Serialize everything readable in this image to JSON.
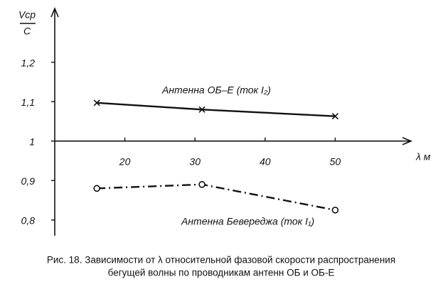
{
  "chart_data": {
    "type": "line",
    "ylabel": {
      "numerator": "Vср",
      "denominator": "C"
    },
    "xlabel": "λ м",
    "xlim": [
      10,
      60
    ],
    "xticks": [
      20,
      30,
      40,
      50
    ],
    "ylim": [
      0.76,
      1.32
    ],
    "yticks": [
      {
        "value": 0.8,
        "label": "0,8"
      },
      {
        "value": 0.9,
        "label": "0,9"
      },
      1,
      {
        "value": 1.1,
        "label": "1,1"
      },
      {
        "value": 1.2,
        "label": "1,2"
      }
    ],
    "series": [
      {
        "name": "Антенна ОБ–Е  (ток I₂)",
        "color": "#111111",
        "marker": "x",
        "dash": "solid",
        "x": [
          16,
          31,
          50
        ],
        "values": [
          1.097,
          1.08,
          1.063
        ]
      },
      {
        "name": "Антенна Бевереджа  (ток I₁)",
        "color": "#111111",
        "marker": "o",
        "dash": "dash-dot",
        "x": [
          16,
          31,
          50
        ],
        "values": [
          0.88,
          0.89,
          0.825
        ]
      }
    ],
    "caption": [
      "Рис. 18. Зависимости от λ относительной фазовой скорости распространения",
      "бегущей волны по проводникам антенн ОБ и ОБ-Е"
    ]
  }
}
